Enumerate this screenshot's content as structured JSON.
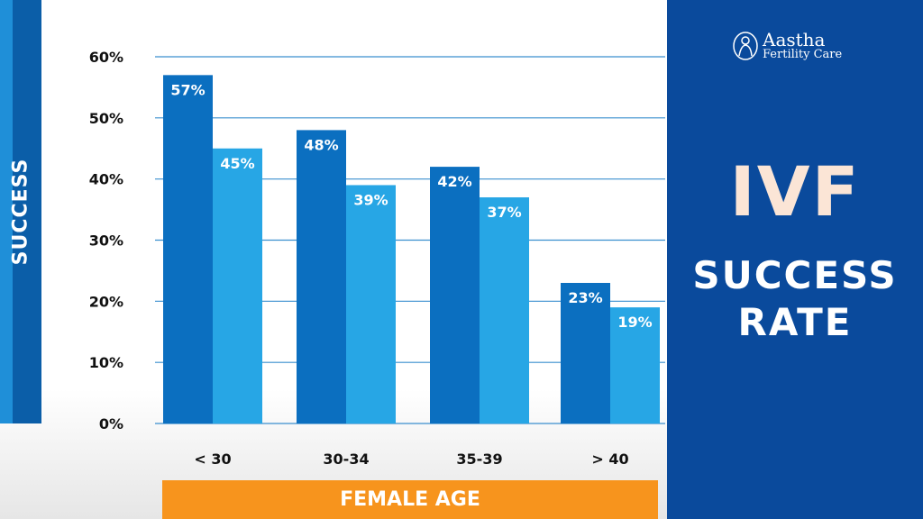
{
  "chart_data": {
    "type": "bar",
    "title": "IVF SUCCESS RATE",
    "xlabel": "FEMALE AGE",
    "ylabel": "SUCCESS",
    "categories": [
      "< 30",
      "30-34",
      "35-39",
      "> 40"
    ],
    "series": [
      {
        "values": [
          57,
          48,
          42,
          23
        ],
        "labels": [
          "57%",
          "48%",
          "42%",
          "23%"
        ],
        "color": "#0b6fc0"
      },
      {
        "values": [
          45,
          39,
          37,
          19
        ],
        "labels": [
          "45%",
          "39%",
          "37%",
          "19%"
        ],
        "color": "#27a6e5"
      }
    ],
    "ylim": [
      0,
      60
    ],
    "yticks": [
      "0%",
      "10%",
      "20%",
      "30%",
      "40%",
      "50%",
      "60%"
    ],
    "grid": true,
    "grid_color": "#3a8fcf"
  },
  "brand": {
    "name": "Aastha",
    "sub": "Fertility Care"
  },
  "panel": {
    "title_big": "IVF",
    "title_line1": "SUCCESS",
    "title_line2": "RATE"
  }
}
